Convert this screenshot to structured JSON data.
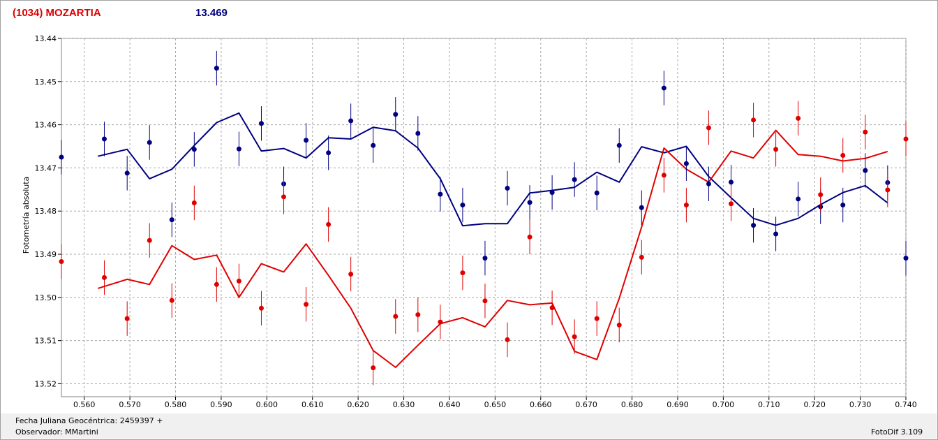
{
  "header": {
    "title": "(1034) MOZARTIA",
    "magnitude": "13.469",
    "title_color": "#e00000",
    "magnitude_color": "#000080"
  },
  "footer": {
    "date_label": "Fecha Juliana Geocéntrica: 2459397 +",
    "observer_label": "Observador: MMartini",
    "software_label": "FotoDif 3.109"
  },
  "chart_data": {
    "type": "scatter",
    "title": "",
    "xlabel": "Fecha Juliana Geocéntrica: 2459397 +",
    "ylabel": "Fotometría absoluta",
    "xlim": [
      0.555,
      0.74
    ],
    "ylim": [
      13.44,
      13.523
    ],
    "y_inverted": true,
    "grid": true,
    "x_ticks": [
      "0.560",
      "0.570",
      "0.580",
      "0.590",
      "0.600",
      "0.610",
      "0.620",
      "0.630",
      "0.640",
      "0.650",
      "0.660",
      "0.670",
      "0.680",
      "0.690",
      "0.700",
      "0.710",
      "0.720",
      "0.730",
      "0.740"
    ],
    "y_ticks": [
      "13.44",
      "13.45",
      "13.46",
      "13.47",
      "13.48",
      "13.49",
      "13.50",
      "13.51",
      "13.52"
    ],
    "series": [
      {
        "color": "#000080",
        "points": [
          {
            "x": 0.555,
            "y": 13.4675,
            "err": 0.004
          },
          {
            "x": 0.5644,
            "y": 13.4633,
            "err": 0.004
          },
          {
            "x": 0.5694,
            "y": 13.4712,
            "err": 0.004
          },
          {
            "x": 0.5743,
            "y": 13.4641,
            "err": 0.004
          },
          {
            "x": 0.5792,
            "y": 13.482,
            "err": 0.004
          },
          {
            "x": 0.5841,
            "y": 13.4657,
            "err": 0.004
          },
          {
            "x": 0.589,
            "y": 13.4469,
            "err": 0.004
          },
          {
            "x": 0.5939,
            "y": 13.4656,
            "err": 0.004
          },
          {
            "x": 0.5988,
            "y": 13.4597,
            "err": 0.004
          },
          {
            "x": 0.6037,
            "y": 13.4737,
            "err": 0.004
          },
          {
            "x": 0.6086,
            "y": 13.4636,
            "err": 0.004
          },
          {
            "x": 0.6135,
            "y": 13.4665,
            "err": 0.004
          },
          {
            "x": 0.6184,
            "y": 13.4591,
            "err": 0.004
          },
          {
            "x": 0.6233,
            "y": 13.4648,
            "err": 0.004
          },
          {
            "x": 0.6282,
            "y": 13.4576,
            "err": 0.004
          },
          {
            "x": 0.6331,
            "y": 13.462,
            "err": 0.004
          },
          {
            "x": 0.638,
            "y": 13.4761,
            "err": 0.004
          },
          {
            "x": 0.6429,
            "y": 13.4786,
            "err": 0.004
          },
          {
            "x": 0.6478,
            "y": 13.4909,
            "err": 0.004
          },
          {
            "x": 0.6527,
            "y": 13.4747,
            "err": 0.004
          },
          {
            "x": 0.6576,
            "y": 13.478,
            "err": 0.004
          },
          {
            "x": 0.6625,
            "y": 13.4757,
            "err": 0.004
          },
          {
            "x": 0.6674,
            "y": 13.4727,
            "err": 0.004
          },
          {
            "x": 0.6723,
            "y": 13.4758,
            "err": 0.004
          },
          {
            "x": 0.6772,
            "y": 13.4648,
            "err": 0.004
          },
          {
            "x": 0.6821,
            "y": 13.4792,
            "err": 0.004
          },
          {
            "x": 0.687,
            "y": 13.4515,
            "err": 0.004
          },
          {
            "x": 0.6919,
            "y": 13.469,
            "err": 0.004
          },
          {
            "x": 0.6968,
            "y": 13.4737,
            "err": 0.004
          },
          {
            "x": 0.7017,
            "y": 13.4733,
            "err": 0.004
          },
          {
            "x": 0.7066,
            "y": 13.4833,
            "err": 0.004
          },
          {
            "x": 0.7115,
            "y": 13.4853,
            "err": 0.004
          },
          {
            "x": 0.7164,
            "y": 13.4772,
            "err": 0.004
          },
          {
            "x": 0.7213,
            "y": 13.479,
            "err": 0.004
          },
          {
            "x": 0.7262,
            "y": 13.4786,
            "err": 0.004
          },
          {
            "x": 0.7311,
            "y": 13.4706,
            "err": 0.004
          },
          {
            "x": 0.736,
            "y": 13.4734,
            "err": 0.004
          },
          {
            "x": 0.74,
            "y": 13.4909,
            "err": 0.004
          }
        ],
        "line": [
          [
            0.563,
            13.4673
          ],
          [
            0.5694,
            13.4657
          ],
          [
            0.5743,
            13.4725
          ],
          [
            0.5792,
            13.4703
          ],
          [
            0.5841,
            13.4648
          ],
          [
            0.589,
            13.4595
          ],
          [
            0.5939,
            13.4573
          ],
          [
            0.5988,
            13.4661
          ],
          [
            0.6037,
            13.4655
          ],
          [
            0.6086,
            13.4677
          ],
          [
            0.6135,
            13.463
          ],
          [
            0.6184,
            13.4633
          ],
          [
            0.6233,
            13.4606
          ],
          [
            0.6282,
            13.4614
          ],
          [
            0.6331,
            13.4654
          ],
          [
            0.638,
            13.4725
          ],
          [
            0.6429,
            13.4834
          ],
          [
            0.6478,
            13.4829
          ],
          [
            0.6527,
            13.4829
          ],
          [
            0.6576,
            13.4758
          ],
          [
            0.6625,
            13.4752
          ],
          [
            0.6674,
            13.4745
          ],
          [
            0.6723,
            13.471
          ],
          [
            0.6772,
            13.4733
          ],
          [
            0.6821,
            13.4651
          ],
          [
            0.687,
            13.4665
          ],
          [
            0.6919,
            13.465
          ],
          [
            0.6968,
            13.472
          ],
          [
            0.7017,
            13.4769
          ],
          [
            0.7066,
            13.4817
          ],
          [
            0.7115,
            13.4833
          ],
          [
            0.7164,
            13.4817
          ],
          [
            0.7213,
            13.4785
          ],
          [
            0.7262,
            13.4757
          ],
          [
            0.7311,
            13.4741
          ],
          [
            0.736,
            13.4781
          ]
        ]
      },
      {
        "color": "#e00000",
        "points": [
          {
            "x": 0.555,
            "y": 13.4917,
            "err": 0.004
          },
          {
            "x": 0.5644,
            "y": 13.4954,
            "err": 0.004
          },
          {
            "x": 0.5694,
            "y": 13.5049,
            "err": 0.004
          },
          {
            "x": 0.5743,
            "y": 13.4868,
            "err": 0.004
          },
          {
            "x": 0.5792,
            "y": 13.5007,
            "err": 0.004
          },
          {
            "x": 0.5841,
            "y": 13.4781,
            "err": 0.004
          },
          {
            "x": 0.589,
            "y": 13.497,
            "err": 0.004
          },
          {
            "x": 0.5939,
            "y": 13.4962,
            "err": 0.004
          },
          {
            "x": 0.5988,
            "y": 13.5025,
            "err": 0.004
          },
          {
            "x": 0.6037,
            "y": 13.4767,
            "err": 0.004
          },
          {
            "x": 0.6086,
            "y": 13.5016,
            "err": 0.004
          },
          {
            "x": 0.6135,
            "y": 13.4831,
            "err": 0.004
          },
          {
            "x": 0.6184,
            "y": 13.4946,
            "err": 0.004
          },
          {
            "x": 0.6233,
            "y": 13.5163,
            "err": 0.004
          },
          {
            "x": 0.6282,
            "y": 13.5044,
            "err": 0.004
          },
          {
            "x": 0.6331,
            "y": 13.504,
            "err": 0.004
          },
          {
            "x": 0.638,
            "y": 13.5057,
            "err": 0.004
          },
          {
            "x": 0.6429,
            "y": 13.4943,
            "err": 0.004
          },
          {
            "x": 0.6478,
            "y": 13.5008,
            "err": 0.004
          },
          {
            "x": 0.6527,
            "y": 13.5098,
            "err": 0.004
          },
          {
            "x": 0.6576,
            "y": 13.486,
            "err": 0.004
          },
          {
            "x": 0.6625,
            "y": 13.5024,
            "err": 0.004
          },
          {
            "x": 0.6674,
            "y": 13.5091,
            "err": 0.004
          },
          {
            "x": 0.6723,
            "y": 13.5049,
            "err": 0.004
          },
          {
            "x": 0.6772,
            "y": 13.5064,
            "err": 0.004
          },
          {
            "x": 0.6821,
            "y": 13.4907,
            "err": 0.004
          },
          {
            "x": 0.687,
            "y": 13.4717,
            "err": 0.004
          },
          {
            "x": 0.6919,
            "y": 13.4786,
            "err": 0.004
          },
          {
            "x": 0.6968,
            "y": 13.4607,
            "err": 0.004
          },
          {
            "x": 0.7017,
            "y": 13.4783,
            "err": 0.004
          },
          {
            "x": 0.7066,
            "y": 13.4589,
            "err": 0.004
          },
          {
            "x": 0.7115,
            "y": 13.4657,
            "err": 0.004
          },
          {
            "x": 0.7164,
            "y": 13.4585,
            "err": 0.004
          },
          {
            "x": 0.7213,
            "y": 13.4762,
            "err": 0.004
          },
          {
            "x": 0.7262,
            "y": 13.4671,
            "err": 0.004
          },
          {
            "x": 0.7311,
            "y": 13.4617,
            "err": 0.004
          },
          {
            "x": 0.736,
            "y": 13.4751,
            "err": 0.004
          },
          {
            "x": 0.74,
            "y": 13.4633,
            "err": 0.004
          }
        ],
        "line": [
          [
            0.563,
            13.4979
          ],
          [
            0.5694,
            13.4958
          ],
          [
            0.5743,
            13.497
          ],
          [
            0.5792,
            13.488
          ],
          [
            0.5841,
            13.4912
          ],
          [
            0.589,
            13.4902
          ],
          [
            0.5939,
            13.5
          ],
          [
            0.5988,
            13.4922
          ],
          [
            0.6037,
            13.4941
          ],
          [
            0.6086,
            13.4876
          ],
          [
            0.6135,
            13.4949
          ],
          [
            0.6184,
            13.5025
          ],
          [
            0.6233,
            13.5123
          ],
          [
            0.6282,
            13.5162
          ],
          [
            0.6331,
            13.5111
          ],
          [
            0.638,
            13.5061
          ],
          [
            0.6429,
            13.5047
          ],
          [
            0.6478,
            13.5068
          ],
          [
            0.6527,
            13.5007
          ],
          [
            0.6576,
            13.5017
          ],
          [
            0.6625,
            13.5013
          ],
          [
            0.6674,
            13.5125
          ],
          [
            0.6723,
            13.5144
          ],
          [
            0.6772,
            13.5002
          ],
          [
            0.6821,
            13.4837
          ],
          [
            0.687,
            13.4654
          ],
          [
            0.6919,
            13.4703
          ],
          [
            0.6968,
            13.4733
          ],
          [
            0.7017,
            13.4661
          ],
          [
            0.7066,
            13.4677
          ],
          [
            0.7115,
            13.4613
          ],
          [
            0.7164,
            13.4669
          ],
          [
            0.7213,
            13.4673
          ],
          [
            0.7262,
            13.4684
          ],
          [
            0.7311,
            13.4678
          ],
          [
            0.736,
            13.4662
          ]
        ]
      }
    ]
  }
}
